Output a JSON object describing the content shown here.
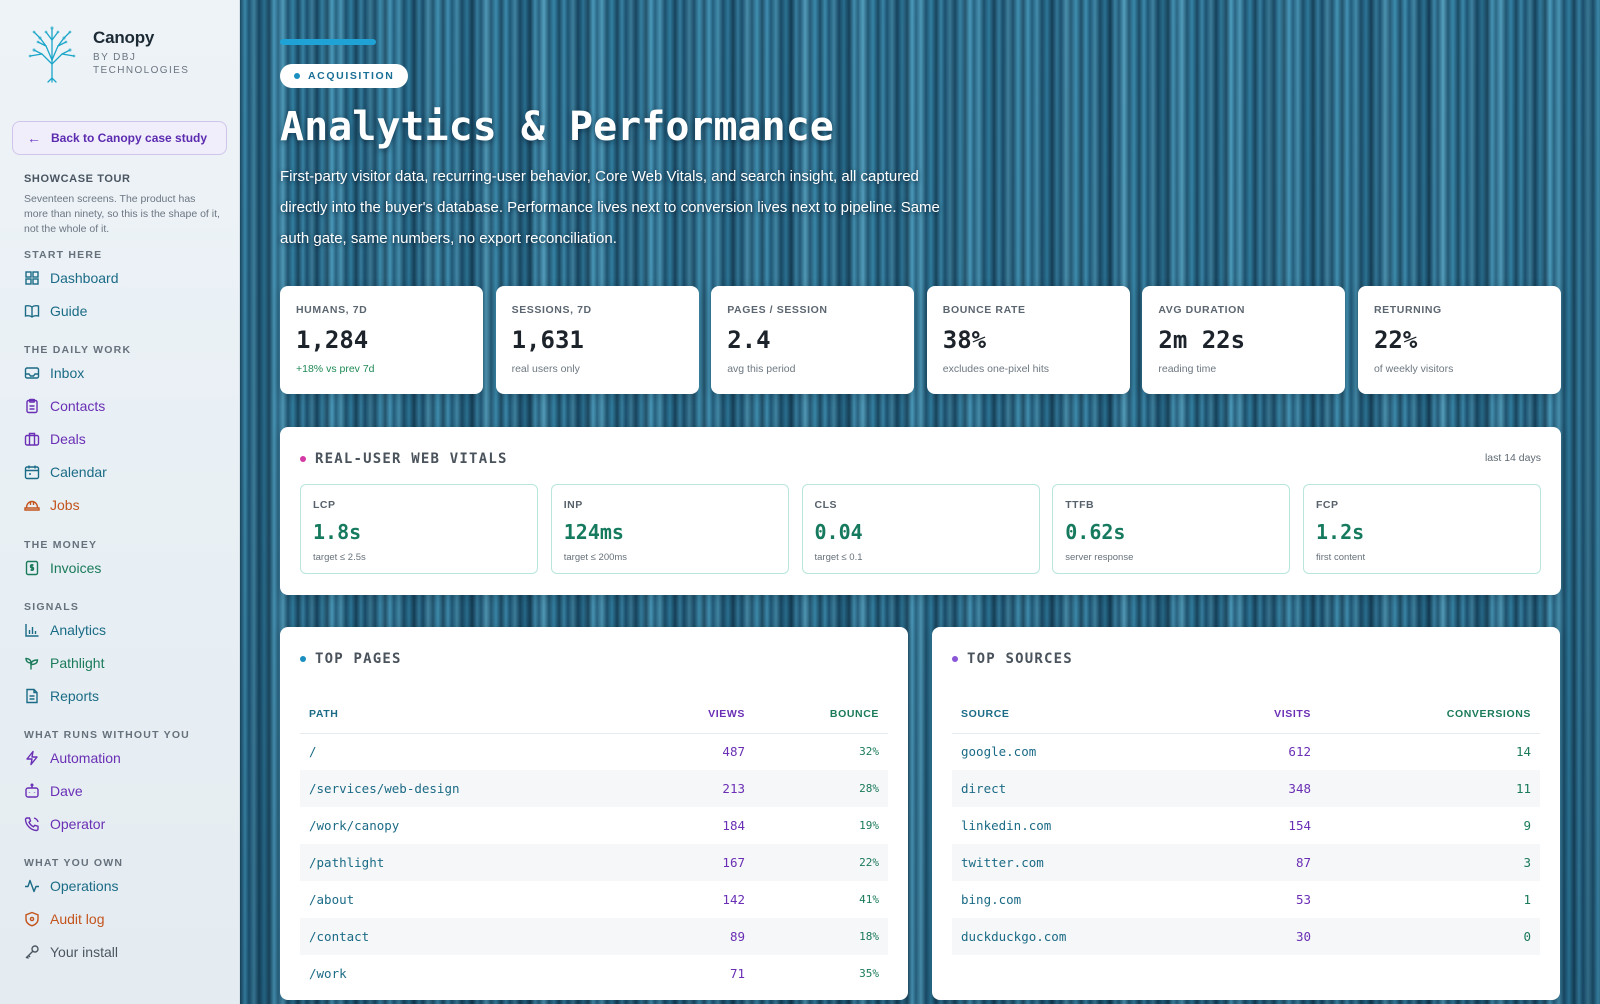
{
  "sidebar": {
    "brand": {
      "name": "Canopy",
      "by": "BY DBJ TECHNOLOGIES"
    },
    "back_label": "Back to Canopy case study",
    "tour_title": "SHOWCASE TOUR",
    "tour_desc": "Seventeen screens. The product has more than ninety, so this is the shape of it, not the whole of it.",
    "sections": {
      "start": "START HERE",
      "daily": "THE DAILY WORK",
      "money": "THE MONEY",
      "signals": "SIGNALS",
      "auto": "WHAT RUNS WITHOUT YOU",
      "own": "WHAT YOU OWN"
    },
    "items": {
      "dashboard": "Dashboard",
      "guide": "Guide",
      "inbox": "Inbox",
      "contacts": "Contacts",
      "deals": "Deals",
      "calendar": "Calendar",
      "jobs": "Jobs",
      "invoices": "Invoices",
      "analytics": "Analytics",
      "pathlight": "Pathlight",
      "reports": "Reports",
      "automation": "Automation",
      "dave": "Dave",
      "operator": "Operator",
      "operations": "Operations",
      "audit_log": "Audit log",
      "your_install": "Your install"
    }
  },
  "header": {
    "pill": "ACQUISITION",
    "title": "Analytics & Performance",
    "description": "First-party visitor data, recurring-user behavior, Core Web Vitals, and search insight, all captured directly into the buyer's database. Performance lives next to conversion lives next to pipeline. Same auth gate, same numbers, no export reconciliation."
  },
  "stats": [
    {
      "label": "HUMANS, 7D",
      "value": "1,284",
      "sub": "+18% vs prev 7d"
    },
    {
      "label": "SESSIONS, 7D",
      "value": "1,631",
      "sub": "real users only"
    },
    {
      "label": "PAGES / SESSION",
      "value": "2.4",
      "sub": "avg this period"
    },
    {
      "label": "BOUNCE RATE",
      "value": "38%",
      "sub": "excludes one-pixel hits"
    },
    {
      "label": "AVG DURATION",
      "value": "2m 22s",
      "sub": "reading time"
    },
    {
      "label": "RETURNING",
      "value": "22%",
      "sub": "of weekly visitors"
    }
  ],
  "vitals": {
    "title": "REAL-USER WEB VITALS",
    "period": "last 14 days",
    "items": [
      {
        "label": "LCP",
        "value": "1.8s",
        "sub": "target ≤ 2.5s"
      },
      {
        "label": "INP",
        "value": "124ms",
        "sub": "target ≤ 200ms"
      },
      {
        "label": "CLS",
        "value": "0.04",
        "sub": "target ≤ 0.1"
      },
      {
        "label": "TTFB",
        "value": "0.62s",
        "sub": "server response"
      },
      {
        "label": "FCP",
        "value": "1.2s",
        "sub": "first content"
      }
    ]
  },
  "top_pages": {
    "title": "TOP PAGES",
    "headers": [
      "PATH",
      "VIEWS",
      "BOUNCE"
    ],
    "rows": [
      [
        "/",
        "487",
        "32%"
      ],
      [
        "/services/web-design",
        "213",
        "28%"
      ],
      [
        "/work/canopy",
        "184",
        "19%"
      ],
      [
        "/pathlight",
        "167",
        "22%"
      ],
      [
        "/about",
        "142",
        "41%"
      ],
      [
        "/contact",
        "89",
        "18%"
      ],
      [
        "/work",
        "71",
        "35%"
      ]
    ]
  },
  "top_sources": {
    "title": "TOP SOURCES",
    "headers": [
      "SOURCE",
      "VISITS",
      "CONVERSIONS"
    ],
    "rows": [
      [
        "google.com",
        "612",
        "14"
      ],
      [
        "direct",
        "348",
        "11"
      ],
      [
        "linkedin.com",
        "154",
        "9"
      ],
      [
        "twitter.com",
        "87",
        "3"
      ],
      [
        "bing.com",
        "53",
        "1"
      ],
      [
        "duckduckgo.com",
        "30",
        "0"
      ]
    ]
  },
  "colors": {
    "accent": "#1fa3d6",
    "teal": "#1b6b86",
    "purple": "#6a2fb5",
    "orange": "#c4541d",
    "green": "#1a7a5a"
  }
}
